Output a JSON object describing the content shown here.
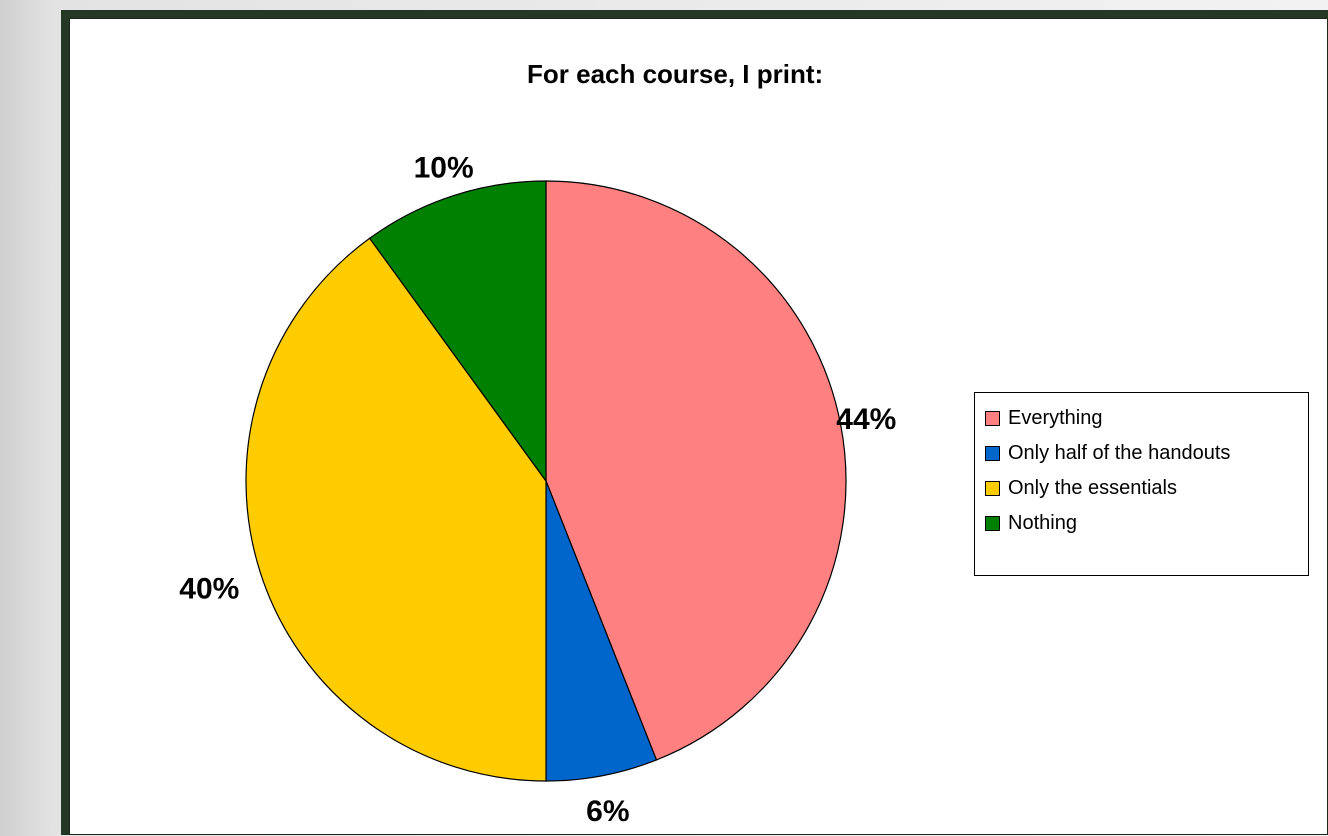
{
  "chart_data": {
    "type": "pie",
    "title": "For each course, I print:",
    "categories": [
      "Everything",
      "Only half of the handouts",
      "Only the essentials",
      "Nothing"
    ],
    "values": [
      44,
      6,
      40,
      10
    ],
    "labels": [
      "44%",
      "6%",
      "40%",
      "10%"
    ],
    "colors": [
      "#ff8080",
      "#0066cc",
      "#ffcc00",
      "#008000"
    ],
    "legend": "right"
  }
}
